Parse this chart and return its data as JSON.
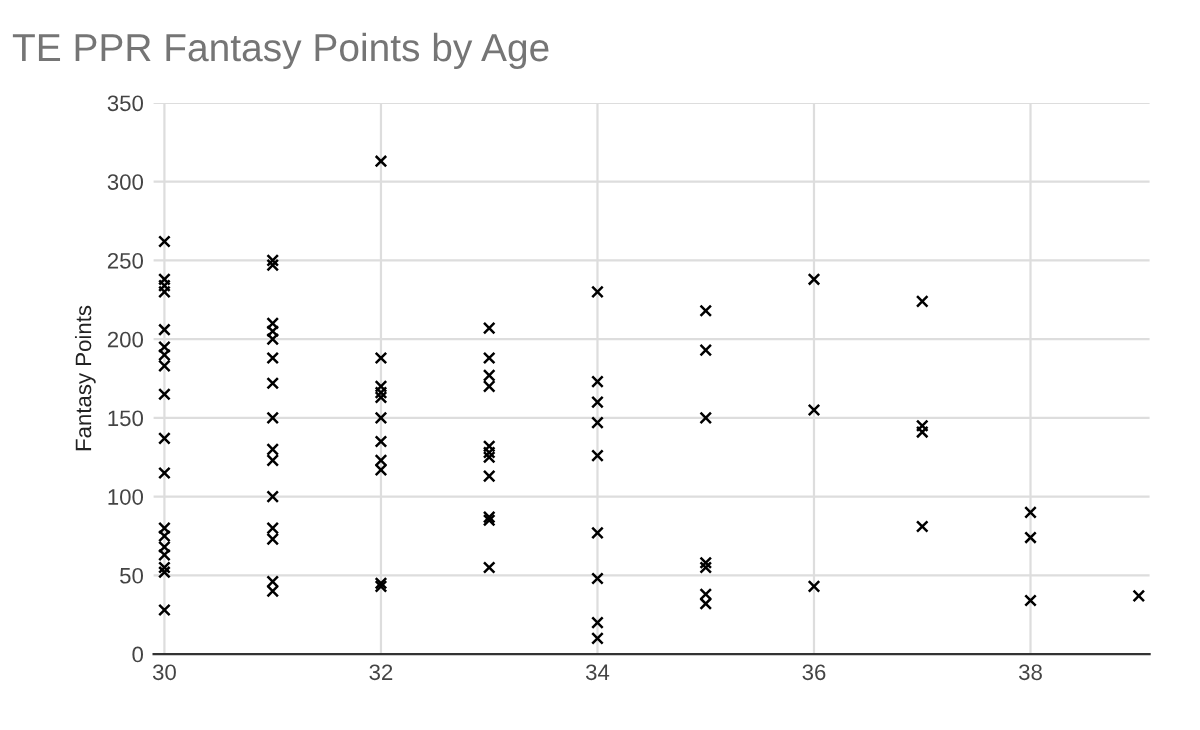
{
  "chart_data": {
    "type": "scatter",
    "title": "TE PPR Fantasy Points by Age",
    "ylabel": "Fantasy Points",
    "x": [
      30,
      30,
      30,
      30,
      30,
      30,
      30,
      30,
      30,
      30,
      30,
      30,
      30,
      30,
      30,
      30,
      30,
      30,
      31,
      31,
      31,
      31,
      31,
      31,
      31,
      31,
      31,
      31,
      31,
      31,
      31,
      31,
      31,
      32,
      32,
      32,
      32,
      32,
      32,
      32,
      32,
      32,
      32,
      32,
      33,
      33,
      33,
      33,
      33,
      33,
      33,
      33,
      33,
      33,
      33,
      34,
      34,
      34,
      34,
      34,
      34,
      34,
      34,
      34,
      35,
      35,
      35,
      35,
      35,
      35,
      35,
      36,
      36,
      36,
      37,
      37,
      37,
      37,
      38,
      38,
      38,
      39
    ],
    "values": [
      262,
      238,
      234,
      230,
      206,
      195,
      190,
      183,
      165,
      137,
      115,
      80,
      75,
      68,
      63,
      55,
      52,
      28,
      250,
      247,
      210,
      205,
      200,
      188,
      172,
      150,
      130,
      123,
      100,
      80,
      73,
      46,
      40,
      313,
      188,
      170,
      166,
      163,
      150,
      135,
      123,
      117,
      45,
      43,
      207,
      188,
      177,
      170,
      132,
      128,
      125,
      113,
      87,
      85,
      55,
      230,
      173,
      160,
      147,
      126,
      77,
      48,
      20,
      10,
      218,
      193,
      150,
      58,
      55,
      38,
      32,
      238,
      155,
      43,
      224,
      145,
      141,
      81,
      90,
      74,
      34,
      37
    ],
    "color": "#000000",
    "marker": "cross",
    "xlim": [
      29.9,
      39.1
    ],
    "xticks": [
      30,
      32,
      34,
      36,
      38
    ],
    "ylim": [
      0,
      350
    ],
    "yticks": [
      0,
      50,
      100,
      150,
      200,
      250,
      300,
      350
    ],
    "grid": true
  }
}
